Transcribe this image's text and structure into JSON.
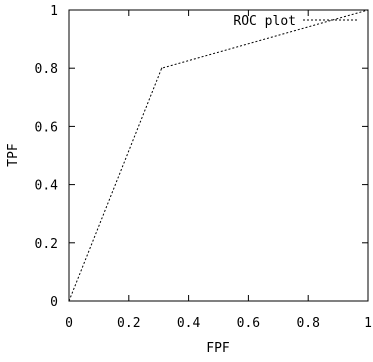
{
  "chart_data": {
    "type": "line",
    "title": "",
    "xlabel": "FPF",
    "ylabel": "TPF",
    "xlim": [
      0,
      1
    ],
    "ylim": [
      0,
      1
    ],
    "x_ticks": [
      "0",
      "0.2",
      "0.4",
      "0.6",
      "0.8",
      "1"
    ],
    "y_ticks": [
      "0",
      "0.2",
      "0.4",
      "0.6",
      "0.8",
      "1"
    ],
    "grid": false,
    "legend": {
      "position": "top-right",
      "entries": [
        "ROC plot"
      ]
    },
    "series": [
      {
        "name": "ROC plot",
        "style": "dotted",
        "color": "#000000",
        "x": [
          0,
          0.31,
          1
        ],
        "y": [
          0,
          0.8,
          1
        ]
      }
    ]
  }
}
